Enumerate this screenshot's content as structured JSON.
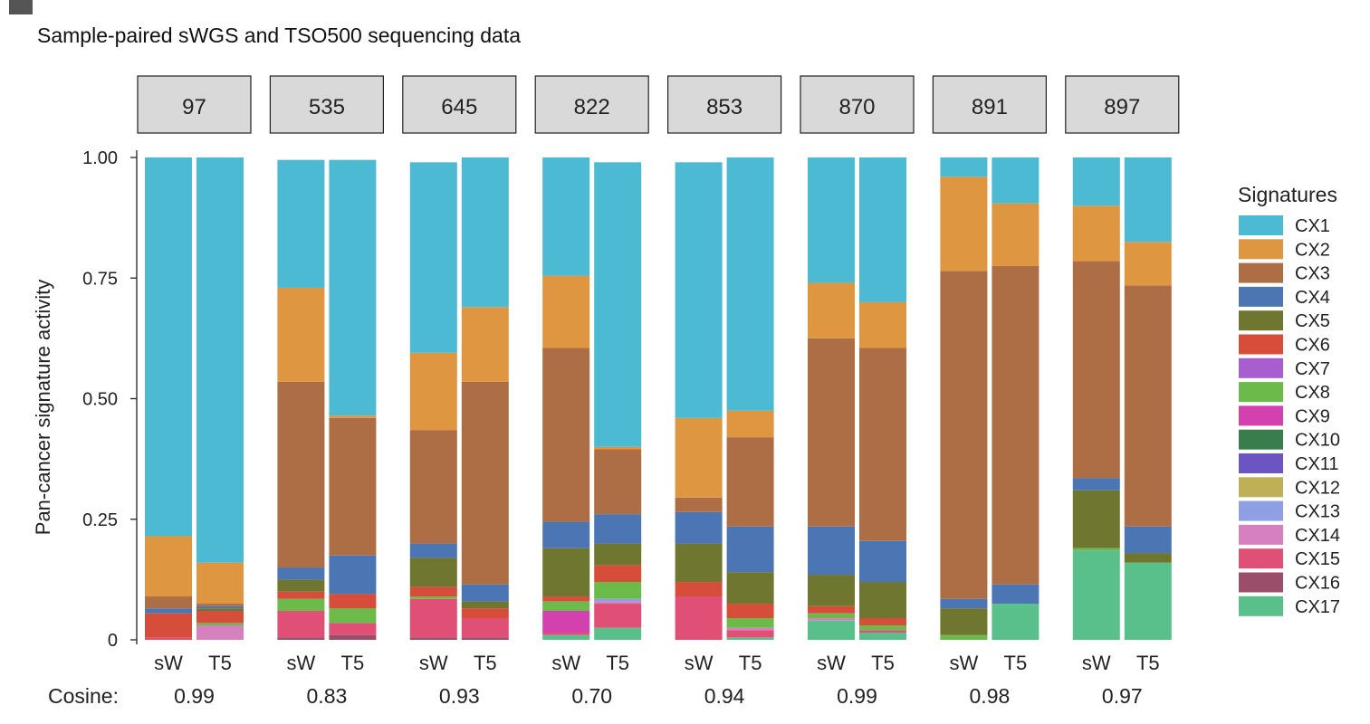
{
  "chart_data": {
    "type": "bar",
    "stacked": true,
    "title": "Sample-paired sWGS and TSO500 sequencing data",
    "ylabel": "Pan-cancer signature activity",
    "ylim": [
      0,
      1
    ],
    "yticks": [
      0,
      0.25,
      0.5,
      0.75,
      1.0
    ],
    "ytick_labels": [
      "0",
      "0.25",
      "0.50",
      "0.75",
      "1.00"
    ],
    "facets": [
      "97",
      "535",
      "645",
      "822",
      "853",
      "870",
      "891",
      "897"
    ],
    "bar_labels": [
      "sW",
      "T5"
    ],
    "cosine_label": "Cosine:",
    "cosine": [
      "0.99",
      "0.83",
      "0.93",
      "0.70",
      "0.94",
      "0.99",
      "0.98",
      "0.97"
    ],
    "legend_title": "Signatures",
    "signatures": [
      "CX1",
      "CX2",
      "CX3",
      "CX4",
      "CX5",
      "CX6",
      "CX7",
      "CX8",
      "CX9",
      "CX10",
      "CX11",
      "CX12",
      "CX13",
      "CX14",
      "CX15",
      "CX16",
      "CX17"
    ],
    "colors": {
      "CX1": "#4bbad2",
      "CX2": "#de9640",
      "CX3": "#ae6e45",
      "CX4": "#4b76b3",
      "CX5": "#6f7630",
      "CX6": "#d64e3a",
      "CX7": "#a85ece",
      "CX8": "#6cba4a",
      "CX9": "#d241ad",
      "CX10": "#3a7d4c",
      "CX11": "#6a55c2",
      "CX12": "#bfb057",
      "CX13": "#8e9fe4",
      "CX14": "#d680bf",
      "CX15": "#df4f76",
      "CX16": "#9b4e69",
      "CX17": "#59c08c"
    },
    "bars": [
      {
        "facet": "97",
        "label": "sW",
        "values": {
          "CX1": 0.785,
          "CX2": 0.125,
          "CX3": 0.025,
          "CX4": 0.01,
          "CX5": 0.0,
          "CX6": 0.05,
          "CX7": 0.0,
          "CX8": 0.0,
          "CX9": 0.0,
          "CX10": 0.0,
          "CX11": 0.0,
          "CX12": 0.0,
          "CX13": 0.0,
          "CX14": 0.0,
          "CX15": 0.005,
          "CX16": 0.0,
          "CX17": 0.0
        }
      },
      {
        "facet": "97",
        "label": "T5",
        "values": {
          "CX1": 0.84,
          "CX2": 0.085,
          "CX3": 0.005,
          "CX4": 0.005,
          "CX5": 0.005,
          "CX6": 0.025,
          "CX7": 0.0,
          "CX8": 0.005,
          "CX9": 0.0,
          "CX10": 0.0,
          "CX11": 0.0,
          "CX12": 0.0,
          "CX13": 0.0,
          "CX14": 0.03,
          "CX15": 0.0,
          "CX16": 0.0,
          "CX17": 0.0
        }
      },
      {
        "facet": "535",
        "label": "sW",
        "values": {
          "CX1": 0.265,
          "CX2": 0.195,
          "CX3": 0.385,
          "CX4": 0.025,
          "CX5": 0.025,
          "CX6": 0.015,
          "CX7": 0.0,
          "CX8": 0.025,
          "CX9": 0.0,
          "CX10": 0.0,
          "CX11": 0.0,
          "CX12": 0.0,
          "CX13": 0.0,
          "CX14": 0.0,
          "CX15": 0.055,
          "CX16": 0.005,
          "CX17": 0.0
        }
      },
      {
        "facet": "535",
        "label": "T5",
        "values": {
          "CX1": 0.53,
          "CX2": 0.005,
          "CX3": 0.285,
          "CX4": 0.08,
          "CX5": 0.0,
          "CX6": 0.03,
          "CX7": 0.0,
          "CX8": 0.03,
          "CX9": 0.0,
          "CX10": 0.0,
          "CX11": 0.0,
          "CX12": 0.0,
          "CX13": 0.0,
          "CX14": 0.0,
          "CX15": 0.025,
          "CX16": 0.01,
          "CX17": 0.0
        }
      },
      {
        "facet": "645",
        "label": "sW",
        "values": {
          "CX1": 0.395,
          "CX2": 0.16,
          "CX3": 0.235,
          "CX4": 0.03,
          "CX5": 0.06,
          "CX6": 0.02,
          "CX7": 0.0,
          "CX8": 0.005,
          "CX9": 0.0,
          "CX10": 0.0,
          "CX11": 0.0,
          "CX12": 0.0,
          "CX13": 0.0,
          "CX14": 0.0,
          "CX15": 0.08,
          "CX16": 0.005,
          "CX17": 0.0
        }
      },
      {
        "facet": "645",
        "label": "T5",
        "values": {
          "CX1": 0.31,
          "CX2": 0.155,
          "CX3": 0.42,
          "CX4": 0.035,
          "CX5": 0.015,
          "CX6": 0.02,
          "CX7": 0.0,
          "CX8": 0.0,
          "CX9": 0.0,
          "CX10": 0.0,
          "CX11": 0.0,
          "CX12": 0.0,
          "CX13": 0.0,
          "CX14": 0.0,
          "CX15": 0.04,
          "CX16": 0.005,
          "CX17": 0.0
        }
      },
      {
        "facet": "822",
        "label": "sW",
        "values": {
          "CX1": 0.245,
          "CX2": 0.15,
          "CX3": 0.36,
          "CX4": 0.055,
          "CX5": 0.1,
          "CX6": 0.01,
          "CX7": 0.0,
          "CX8": 0.02,
          "CX9": 0.045,
          "CX10": 0.0,
          "CX11": 0.0,
          "CX12": 0.0,
          "CX13": 0.0,
          "CX14": 0.0,
          "CX15": 0.005,
          "CX16": 0.0,
          "CX17": 0.01
        }
      },
      {
        "facet": "822",
        "label": "T5",
        "values": {
          "CX1": 0.59,
          "CX2": 0.005,
          "CX3": 0.135,
          "CX4": 0.06,
          "CX5": 0.045,
          "CX6": 0.035,
          "CX7": 0.0,
          "CX8": 0.035,
          "CX9": 0.0,
          "CX10": 0.0,
          "CX11": 0.0,
          "CX12": 0.0,
          "CX13": 0.005,
          "CX14": 0.005,
          "CX15": 0.05,
          "CX16": 0.0,
          "CX17": 0.025
        }
      },
      {
        "facet": "853",
        "label": "sW",
        "values": {
          "CX1": 0.53,
          "CX2": 0.165,
          "CX3": 0.03,
          "CX4": 0.065,
          "CX5": 0.08,
          "CX6": 0.03,
          "CX7": 0.0,
          "CX8": 0.0,
          "CX9": 0.0,
          "CX10": 0.0,
          "CX11": 0.0,
          "CX12": 0.0,
          "CX13": 0.0,
          "CX14": 0.0,
          "CX15": 0.09,
          "CX16": 0.0,
          "CX17": 0.0
        }
      },
      {
        "facet": "853",
        "label": "T5",
        "values": {
          "CX1": 0.525,
          "CX2": 0.055,
          "CX3": 0.185,
          "CX4": 0.095,
          "CX5": 0.065,
          "CX6": 0.03,
          "CX7": 0.0,
          "CX8": 0.02,
          "CX9": 0.0,
          "CX10": 0.0,
          "CX11": 0.0,
          "CX12": 0.0,
          "CX13": 0.0,
          "CX14": 0.005,
          "CX15": 0.015,
          "CX16": 0.0,
          "CX17": 0.005
        }
      },
      {
        "facet": "870",
        "label": "sW",
        "values": {
          "CX1": 0.26,
          "CX2": 0.115,
          "CX3": 0.39,
          "CX4": 0.1,
          "CX5": 0.065,
          "CX6": 0.015,
          "CX7": 0.0,
          "CX8": 0.01,
          "CX9": 0.0,
          "CX10": 0.0,
          "CX11": 0.0,
          "CX12": 0.0,
          "CX13": 0.0,
          "CX14": 0.005,
          "CX15": 0.0,
          "CX16": 0.0,
          "CX17": 0.04
        }
      },
      {
        "facet": "870",
        "label": "T5",
        "values": {
          "CX1": 0.3,
          "CX2": 0.095,
          "CX3": 0.4,
          "CX4": 0.085,
          "CX5": 0.075,
          "CX6": 0.015,
          "CX7": 0.0,
          "CX8": 0.01,
          "CX9": 0.0,
          "CX10": 0.0,
          "CX11": 0.0,
          "CX12": 0.0,
          "CX13": 0.0,
          "CX14": 0.0,
          "CX15": 0.005,
          "CX16": 0.0,
          "CX17": 0.015
        }
      },
      {
        "facet": "891",
        "label": "sW",
        "values": {
          "CX1": 0.04,
          "CX2": 0.195,
          "CX3": 0.68,
          "CX4": 0.02,
          "CX5": 0.055,
          "CX6": 0.0,
          "CX7": 0.0,
          "CX8": 0.01,
          "CX9": 0.0,
          "CX10": 0.0,
          "CX11": 0.0,
          "CX12": 0.0,
          "CX13": 0.0,
          "CX14": 0.0,
          "CX15": 0.0,
          "CX16": 0.0,
          "CX17": 0.0
        }
      },
      {
        "facet": "891",
        "label": "T5",
        "values": {
          "CX1": 0.095,
          "CX2": 0.13,
          "CX3": 0.66,
          "CX4": 0.04,
          "CX5": 0.0,
          "CX6": 0.0,
          "CX7": 0.0,
          "CX8": 0.0,
          "CX9": 0.0,
          "CX10": 0.0,
          "CX11": 0.0,
          "CX12": 0.0,
          "CX13": 0.0,
          "CX14": 0.0,
          "CX15": 0.0,
          "CX16": 0.0,
          "CX17": 0.075
        }
      },
      {
        "facet": "897",
        "label": "sW",
        "values": {
          "CX1": 0.1,
          "CX2": 0.115,
          "CX3": 0.45,
          "CX4": 0.025,
          "CX5": 0.12,
          "CX6": 0.0,
          "CX7": 0.0,
          "CX8": 0.005,
          "CX9": 0.0,
          "CX10": 0.0,
          "CX11": 0.0,
          "CX12": 0.0,
          "CX13": 0.0,
          "CX14": 0.0,
          "CX15": 0.0,
          "CX16": 0.0,
          "CX17": 0.185
        }
      },
      {
        "facet": "897",
        "label": "T5",
        "values": {
          "CX1": 0.175,
          "CX2": 0.09,
          "CX3": 0.5,
          "CX4": 0.055,
          "CX5": 0.02,
          "CX6": 0.0,
          "CX7": 0.0,
          "CX8": 0.0,
          "CX9": 0.0,
          "CX10": 0.0,
          "CX11": 0.0,
          "CX12": 0.0,
          "CX13": 0.0,
          "CX14": 0.0,
          "CX15": 0.0,
          "CX16": 0.0,
          "CX17": 0.16
        }
      }
    ]
  }
}
